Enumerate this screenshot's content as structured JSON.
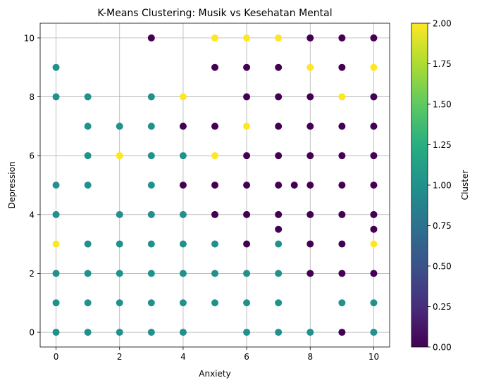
{
  "chart_data": {
    "type": "scatter",
    "title": "K-Means Clustering: Musik vs Kesehatan Mental",
    "xlabel": "Anxiety",
    "ylabel": "Depression",
    "xlim": [
      -0.5,
      10.5
    ],
    "ylim": [
      -0.5,
      10.5
    ],
    "xticks": [
      0,
      2,
      4,
      6,
      8,
      10
    ],
    "yticks": [
      0,
      2,
      4,
      6,
      8,
      10
    ],
    "grid": true,
    "colormap": "viridis",
    "colorbar": {
      "label": "Cluster",
      "range": [
        0,
        2
      ],
      "ticks": [
        "0.00",
        "0.25",
        "0.50",
        "0.75",
        "1.00",
        "1.25",
        "1.50",
        "1.75",
        "2.00"
      ]
    },
    "cluster_colors": {
      "0": "#440154",
      "1": "#21918c",
      "2": "#fde725"
    },
    "points": [
      [
        3,
        10,
        0
      ],
      [
        5,
        10,
        2
      ],
      [
        6,
        10,
        2
      ],
      [
        7,
        10,
        2
      ],
      [
        8,
        10,
        0
      ],
      [
        9,
        10,
        0
      ],
      [
        10,
        10,
        0
      ],
      [
        0,
        9,
        1
      ],
      [
        5,
        9,
        0
      ],
      [
        6,
        9,
        0
      ],
      [
        7,
        9,
        0
      ],
      [
        8,
        9,
        2
      ],
      [
        9,
        9,
        0
      ],
      [
        10,
        9,
        2
      ],
      [
        0,
        8,
        1
      ],
      [
        1,
        8,
        1
      ],
      [
        3,
        8,
        1
      ],
      [
        4,
        8,
        2
      ],
      [
        6,
        8,
        0
      ],
      [
        7,
        8,
        0
      ],
      [
        8,
        8,
        0
      ],
      [
        9,
        8,
        2
      ],
      [
        10,
        8,
        0
      ],
      [
        1,
        7,
        1
      ],
      [
        2,
        7,
        1
      ],
      [
        3,
        7,
        1
      ],
      [
        4,
        7,
        0
      ],
      [
        5,
        7,
        0
      ],
      [
        6,
        7,
        2
      ],
      [
        7,
        7,
        0
      ],
      [
        8,
        7,
        0
      ],
      [
        9,
        7,
        0
      ],
      [
        10,
        7,
        0
      ],
      [
        1,
        6,
        1
      ],
      [
        2,
        6,
        2
      ],
      [
        3,
        6,
        1
      ],
      [
        4,
        6,
        1
      ],
      [
        5,
        6,
        2
      ],
      [
        6,
        6,
        0
      ],
      [
        7,
        6,
        0
      ],
      [
        8,
        6,
        0
      ],
      [
        9,
        6,
        0
      ],
      [
        10,
        6,
        0
      ],
      [
        0,
        5,
        1
      ],
      [
        1,
        5,
        1
      ],
      [
        3,
        5,
        1
      ],
      [
        4,
        5,
        0
      ],
      [
        5,
        5,
        0
      ],
      [
        6,
        5,
        0
      ],
      [
        7,
        5,
        0
      ],
      [
        7.5,
        5,
        0
      ],
      [
        8,
        5,
        0
      ],
      [
        9,
        5,
        0
      ],
      [
        10,
        5,
        0
      ],
      [
        0,
        4,
        1
      ],
      [
        2,
        4,
        1
      ],
      [
        3,
        4,
        1
      ],
      [
        4,
        4,
        1
      ],
      [
        5,
        4,
        0
      ],
      [
        6,
        4,
        0
      ],
      [
        7,
        4,
        0
      ],
      [
        8,
        4,
        0
      ],
      [
        9,
        4,
        0
      ],
      [
        10,
        4,
        0
      ],
      [
        7,
        3.5,
        0
      ],
      [
        10,
        3.5,
        0
      ],
      [
        0,
        3,
        2
      ],
      [
        1,
        3,
        1
      ],
      [
        2,
        3,
        1
      ],
      [
        3,
        3,
        1
      ],
      [
        4,
        3,
        1
      ],
      [
        5,
        3,
        1
      ],
      [
        6,
        3,
        0
      ],
      [
        7,
        3,
        1
      ],
      [
        8,
        3,
        0
      ],
      [
        9,
        3,
        0
      ],
      [
        10,
        3,
        2
      ],
      [
        0,
        2,
        1
      ],
      [
        1,
        2,
        1
      ],
      [
        2,
        2,
        1
      ],
      [
        3,
        2,
        1
      ],
      [
        4,
        2,
        1
      ],
      [
        5,
        2,
        1
      ],
      [
        6,
        2,
        1
      ],
      [
        7,
        2,
        1
      ],
      [
        8,
        2,
        0
      ],
      [
        9,
        2,
        0
      ],
      [
        10,
        2,
        0
      ],
      [
        0,
        1,
        1
      ],
      [
        1,
        1,
        1
      ],
      [
        2,
        1,
        1
      ],
      [
        3,
        1,
        1
      ],
      [
        4,
        1,
        1
      ],
      [
        5,
        1,
        1
      ],
      [
        6,
        1,
        1
      ],
      [
        7,
        1,
        1
      ],
      [
        9,
        1,
        1
      ],
      [
        10,
        1,
        1
      ],
      [
        0,
        0,
        1
      ],
      [
        1,
        0,
        1
      ],
      [
        2,
        0,
        1
      ],
      [
        3,
        0,
        1
      ],
      [
        4,
        0,
        1
      ],
      [
        6,
        0,
        1
      ],
      [
        7,
        0,
        1
      ],
      [
        8,
        0,
        1
      ],
      [
        9,
        0,
        0
      ],
      [
        10,
        0,
        1
      ]
    ]
  }
}
